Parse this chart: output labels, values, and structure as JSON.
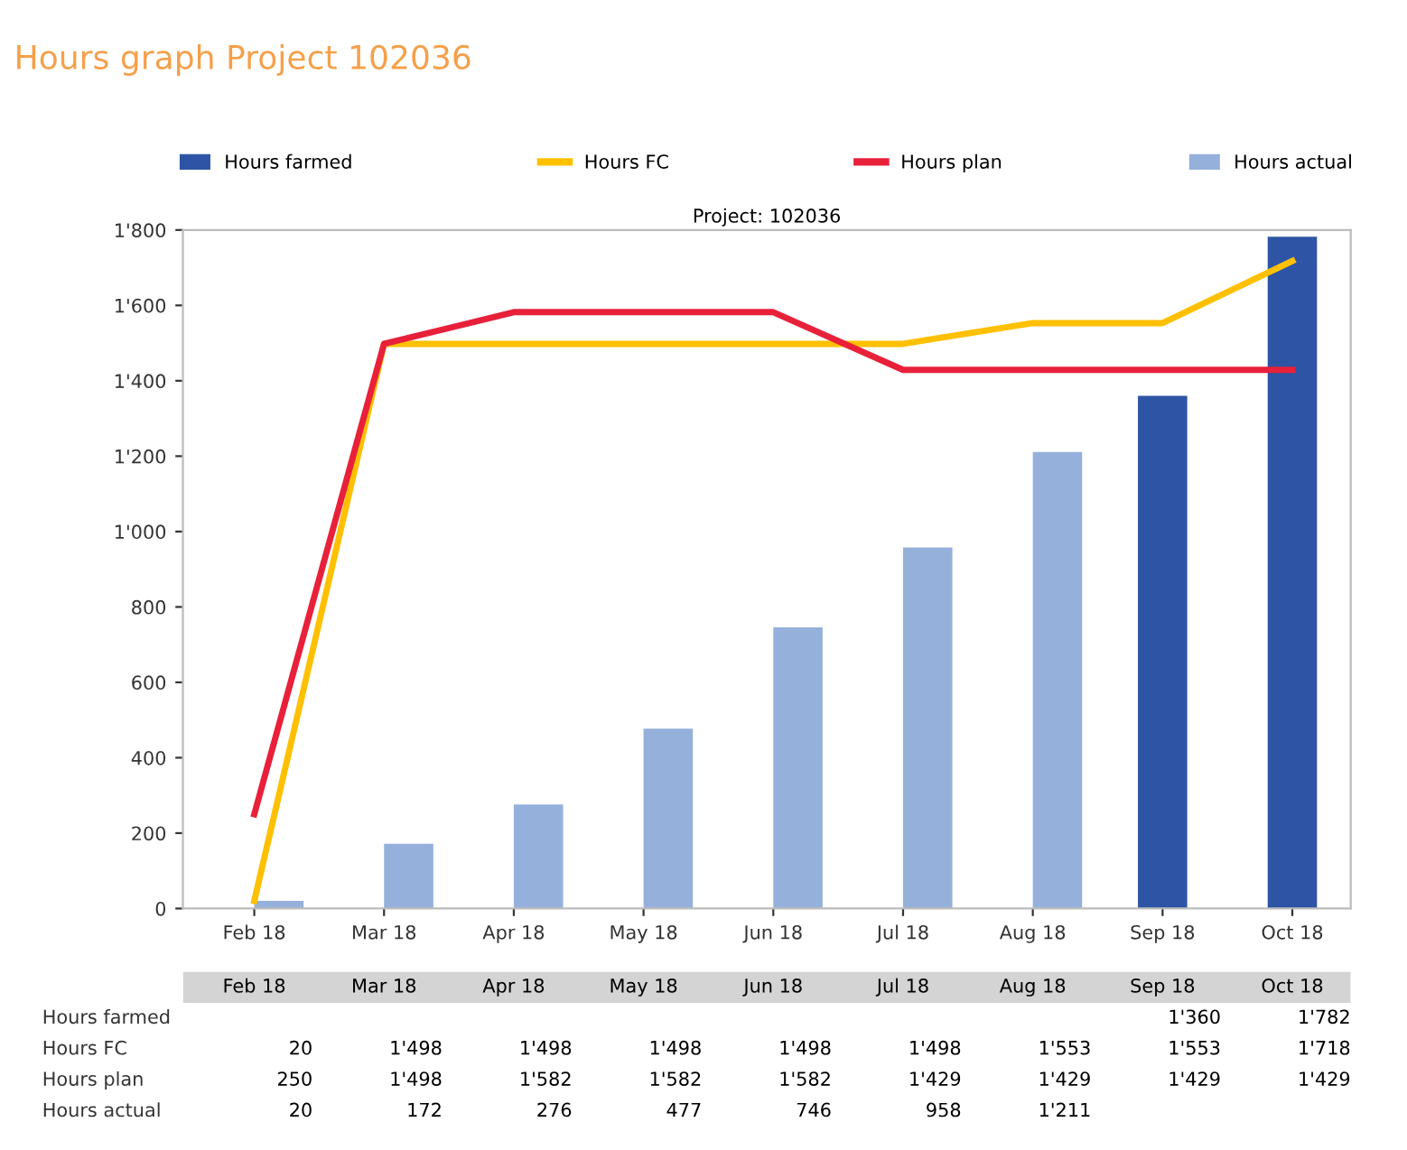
{
  "chart_data": {
    "type": "bar",
    "title": "Hours graph Project 102036",
    "subtitle": "Project: 102036",
    "categories": [
      "Feb 18",
      "Mar 18",
      "Apr 18",
      "May 18",
      "Jun 18",
      "Jul 18",
      "Aug 18",
      "Sep 18",
      "Oct 18"
    ],
    "series": [
      {
        "name": "Hours farmed",
        "color": "#2e55a5",
        "values": [
          null,
          null,
          null,
          null,
          null,
          null,
          null,
          1360,
          1782
        ],
        "value_labels": [
          null,
          null,
          null,
          null,
          null,
          null,
          null,
          "1'360",
          "1'782"
        ]
      },
      {
        "name": "Hours FC",
        "type": "line",
        "color": "#ffc000",
        "values": [
          20,
          1498,
          1498,
          1498,
          1498,
          1498,
          1553,
          1553,
          1718
        ],
        "value_labels": [
          "20",
          "1'498",
          "1'498",
          "1'498",
          "1'498",
          "1'498",
          "1'553",
          "1'553",
          "1'718"
        ]
      },
      {
        "name": "Hours plan",
        "type": "line",
        "color": "#e8203a",
        "values": [
          250,
          1498,
          1582,
          1582,
          1582,
          1429,
          1429,
          1429,
          1429
        ],
        "value_labels": [
          "250",
          "1'498",
          "1'582",
          "1'582",
          "1'582",
          "1'429",
          "1'429",
          "1'429",
          "1'429"
        ]
      },
      {
        "name": "Hours actual",
        "color": "#95b0db",
        "values": [
          20,
          172,
          276,
          477,
          746,
          958,
          1211,
          null,
          null
        ],
        "value_labels": [
          "20",
          "172",
          "276",
          "477",
          "746",
          "958",
          "1'211",
          null,
          null
        ]
      }
    ],
    "ylim": [
      0,
      1800
    ],
    "yticks": [
      0,
      200,
      400,
      600,
      800,
      {
        "value": 1000,
        "label": "1'000"
      },
      {
        "value": 1200,
        "label": "1'200"
      },
      {
        "value": 1400,
        "label": "1'400"
      },
      {
        "value": 1600,
        "label": "1'600"
      },
      {
        "value": 1800,
        "label": "1'800"
      }
    ],
    "grid": false,
    "legend": "top",
    "marker": "none",
    "line_style": "solid"
  }
}
